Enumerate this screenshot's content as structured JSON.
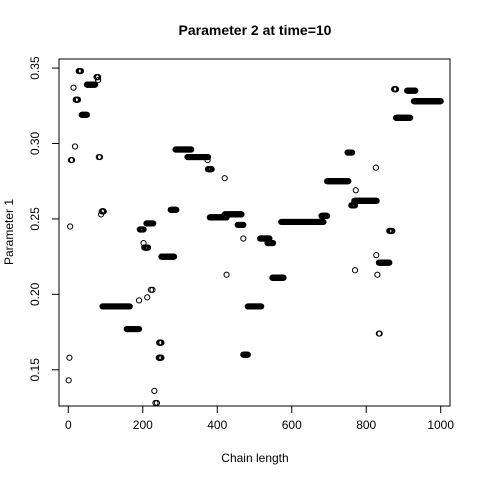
{
  "chart_data": {
    "type": "scatter",
    "title": "Parameter 2 at time=10",
    "xlabel": "Chain length",
    "ylabel": "Parameter 1",
    "xlim": [
      -25,
      1025
    ],
    "ylim": [
      0.126,
      0.356
    ],
    "xticks": [
      0,
      200,
      400,
      600,
      800,
      1000
    ],
    "xtick_labels": [
      "0",
      "200",
      "400",
      "600",
      "800",
      "1000"
    ],
    "yticks": [
      0.15,
      0.2,
      0.25,
      0.3,
      0.35
    ],
    "ytick_labels": [
      "0.15",
      "0.20",
      "0.25",
      "0.30",
      "0.35"
    ],
    "marker": "open-circle",
    "grid": false,
    "segments": [
      {
        "x_start": 20,
        "x_end": 26,
        "y": 0.329
      },
      {
        "x_start": 28,
        "x_end": 34,
        "y": 0.348
      },
      {
        "x_start": 36,
        "x_end": 50,
        "y": 0.319
      },
      {
        "x_start": 50,
        "x_end": 72,
        "y": 0.339
      },
      {
        "x_start": 76,
        "x_end": 80,
        "y": 0.344
      },
      {
        "x_start": 90,
        "x_end": 95,
        "y": 0.255
      },
      {
        "x_start": 92,
        "x_end": 165,
        "y": 0.192
      },
      {
        "x_start": 157,
        "x_end": 190,
        "y": 0.177
      },
      {
        "x_start": 192,
        "x_end": 202,
        "y": 0.243
      },
      {
        "x_start": 204,
        "x_end": 214,
        "y": 0.231
      },
      {
        "x_start": 210,
        "x_end": 228,
        "y": 0.247
      },
      {
        "x_start": 244,
        "x_end": 250,
        "y": 0.168
      },
      {
        "x_start": 243,
        "x_end": 250,
        "y": 0.158
      },
      {
        "x_start": 250,
        "x_end": 284,
        "y": 0.225
      },
      {
        "x_start": 275,
        "x_end": 290,
        "y": 0.256
      },
      {
        "x_start": 288,
        "x_end": 330,
        "y": 0.296
      },
      {
        "x_start": 320,
        "x_end": 375,
        "y": 0.291
      },
      {
        "x_start": 375,
        "x_end": 385,
        "y": 0.283
      },
      {
        "x_start": 380,
        "x_end": 425,
        "y": 0.251
      },
      {
        "x_start": 420,
        "x_end": 465,
        "y": 0.253
      },
      {
        "x_start": 455,
        "x_end": 470,
        "y": 0.246
      },
      {
        "x_start": 470,
        "x_end": 482,
        "y": 0.16
      },
      {
        "x_start": 482,
        "x_end": 518,
        "y": 0.192
      },
      {
        "x_start": 515,
        "x_end": 540,
        "y": 0.237
      },
      {
        "x_start": 535,
        "x_end": 550,
        "y": 0.234
      },
      {
        "x_start": 548,
        "x_end": 578,
        "y": 0.211
      },
      {
        "x_start": 572,
        "x_end": 685,
        "y": 0.248
      },
      {
        "x_start": 680,
        "x_end": 695,
        "y": 0.252
      },
      {
        "x_start": 695,
        "x_end": 752,
        "y": 0.275
      },
      {
        "x_start": 750,
        "x_end": 762,
        "y": 0.294
      },
      {
        "x_start": 760,
        "x_end": 770,
        "y": 0.259
      },
      {
        "x_start": 768,
        "x_end": 828,
        "y": 0.262
      },
      {
        "x_start": 834,
        "x_end": 862,
        "y": 0.221
      },
      {
        "x_start": 862,
        "x_end": 870,
        "y": 0.242
      },
      {
        "x_start": 875,
        "x_end": 880,
        "y": 0.336
      },
      {
        "x_start": 880,
        "x_end": 918,
        "y": 0.317
      },
      {
        "x_start": 910,
        "x_end": 932,
        "y": 0.335
      },
      {
        "x_start": 928,
        "x_end": 1000,
        "y": 0.328
      }
    ],
    "points": [
      {
        "x": 1,
        "y": 0.143
      },
      {
        "x": 3,
        "y": 0.158
      },
      {
        "x": 5,
        "y": 0.245
      },
      {
        "x": 7,
        "y": 0.289
      },
      {
        "x": 10,
        "y": 0.289
      },
      {
        "x": 14,
        "y": 0.337
      },
      {
        "x": 18,
        "y": 0.298
      },
      {
        "x": 22,
        "y": 0.329
      },
      {
        "x": 30,
        "y": 0.348
      },
      {
        "x": 76,
        "y": 0.344
      },
      {
        "x": 80,
        "y": 0.342
      },
      {
        "x": 82,
        "y": 0.291
      },
      {
        "x": 85,
        "y": 0.291
      },
      {
        "x": 88,
        "y": 0.253
      },
      {
        "x": 92,
        "y": 0.255
      },
      {
        "x": 190,
        "y": 0.196
      },
      {
        "x": 202,
        "y": 0.234
      },
      {
        "x": 212,
        "y": 0.198
      },
      {
        "x": 222,
        "y": 0.203
      },
      {
        "x": 226,
        "y": 0.203
      },
      {
        "x": 231,
        "y": 0.136
      },
      {
        "x": 234,
        "y": 0.128
      },
      {
        "x": 238,
        "y": 0.128
      },
      {
        "x": 244,
        "y": 0.158
      },
      {
        "x": 248,
        "y": 0.168
      },
      {
        "x": 374,
        "y": 0.289
      },
      {
        "x": 420,
        "y": 0.277
      },
      {
        "x": 425,
        "y": 0.213
      },
      {
        "x": 470,
        "y": 0.237
      },
      {
        "x": 760,
        "y": 0.294
      },
      {
        "x": 770,
        "y": 0.216
      },
      {
        "x": 772,
        "y": 0.269
      },
      {
        "x": 826,
        "y": 0.284
      },
      {
        "x": 827,
        "y": 0.226
      },
      {
        "x": 830,
        "y": 0.213
      },
      {
        "x": 834,
        "y": 0.174
      },
      {
        "x": 836,
        "y": 0.174
      },
      {
        "x": 876,
        "y": 0.336
      },
      {
        "x": 880,
        "y": 0.336
      }
    ]
  }
}
